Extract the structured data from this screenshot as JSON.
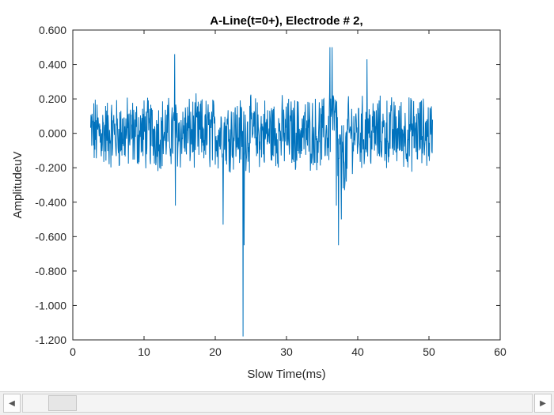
{
  "chart_data": {
    "type": "line",
    "title": "A-Line(t=0+), Electrode # 2,",
    "xlabel": "Slow Time(ms)",
    "ylabel": "AmplitudeuV",
    "xlim": [
      0,
      60
    ],
    "ylim": [
      -1.2,
      0.6
    ],
    "x_ticks": [
      "0",
      "10",
      "20",
      "30",
      "40",
      "50",
      "60"
    ],
    "y_ticks": [
      "0.600",
      "0.400",
      "0.200",
      "0.000",
      "-0.200",
      "-0.400",
      "-0.600",
      "-0.800",
      "-1.000",
      "-1.200"
    ],
    "grid": false,
    "series": [
      {
        "color": "#0072BD",
        "x": [
          2.5,
          50.5
        ],
        "y_extents": [
          -1.18,
          0.5
        ],
        "features": [
          {
            "x": 14.3,
            "y": 0.46
          },
          {
            "x": 14.4,
            "y": -0.42
          },
          {
            "x": 21.1,
            "y": -0.53
          },
          {
            "x": 23.9,
            "y": -1.18
          },
          {
            "x": 24.05,
            "y": -0.65
          },
          {
            "x": 36.1,
            "y": 0.5
          },
          {
            "x": 36.4,
            "y": 0.5
          },
          {
            "x": 37.0,
            "y": -0.42
          },
          {
            "x": 37.3,
            "y": -0.65
          },
          {
            "x": 37.7,
            "y": -0.5
          },
          {
            "x": 41.3,
            "y": 0.43
          }
        ]
      }
    ]
  },
  "scrollbar": {
    "left_arrow": "◀",
    "right_arrow": "▶"
  }
}
